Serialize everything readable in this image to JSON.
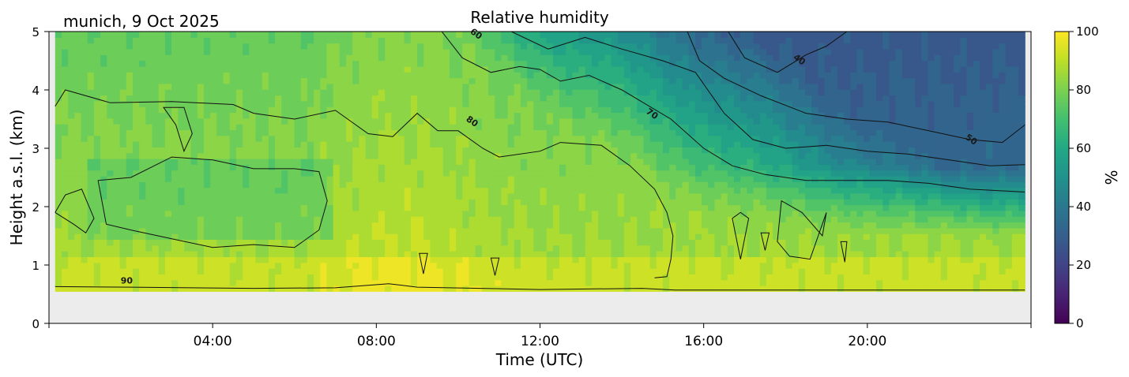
{
  "chart_data": {
    "type": "heatmap",
    "title": "Relative humidity",
    "subtitle": "munich, 9 Oct 2025",
    "xlabel": "Time (UTC)",
    "ylabel": "Height a.s.l. (km)",
    "x_ticks": [
      {
        "hour": 4,
        "label": "04:00"
      },
      {
        "hour": 8,
        "label": "08:00"
      },
      {
        "hour": 12,
        "label": "12:00"
      },
      {
        "hour": 16,
        "label": "16:00"
      },
      {
        "hour": 20,
        "label": "20:00"
      }
    ],
    "xlim_hours": [
      0,
      24
    ],
    "data_xrange_hours": [
      0.15,
      23.85
    ],
    "y_ticks": [
      0,
      1,
      2,
      3,
      4,
      5
    ],
    "ylim": [
      0,
      5
    ],
    "data_ylim": [
      0.55,
      5
    ],
    "colorbar": {
      "label": "%",
      "ticks": [
        0,
        20,
        40,
        60,
        80,
        100
      ],
      "range": [
        0,
        100
      ],
      "colormap": "viridis"
    },
    "no_data_color": "#ececec",
    "contour_levels": [
      40,
      50,
      60,
      70,
      80,
      90
    ],
    "contour_labels": [
      {
        "text": "90",
        "hour": 1.9,
        "km": 0.68
      },
      {
        "text": "80",
        "hour": 10.3,
        "km": 3.42
      },
      {
        "text": "70",
        "hour": 14.7,
        "km": 3.55
      },
      {
        "text": "60",
        "hour": 10.4,
        "km": 4.92
      },
      {
        "text": "50",
        "hour": 22.5,
        "km": 3.11
      },
      {
        "text": "40",
        "hour": 18.3,
        "km": 4.48
      }
    ],
    "contour_lines": {
      "c90": [
        [
          0.15,
          0.63
        ],
        [
          2,
          0.62
        ],
        [
          5,
          0.6
        ],
        [
          7,
          0.61
        ],
        [
          8.3,
          0.68
        ],
        [
          9,
          0.62
        ],
        [
          12,
          0.58
        ],
        [
          14.5,
          0.6
        ],
        [
          15.3,
          0.57
        ],
        [
          23.85,
          0.57
        ]
      ],
      "c80_top": [
        [
          0.15,
          3.72
        ],
        [
          0.4,
          4.0
        ],
        [
          1.5,
          3.78
        ],
        [
          3,
          3.8
        ],
        [
          4.5,
          3.75
        ],
        [
          5,
          3.6
        ],
        [
          6,
          3.5
        ],
        [
          7,
          3.65
        ],
        [
          7.8,
          3.25
        ],
        [
          8.4,
          3.2
        ],
        [
          9,
          3.6
        ],
        [
          9.5,
          3.3
        ],
        [
          10,
          3.3
        ],
        [
          10.6,
          3.0
        ],
        [
          11,
          2.85
        ],
        [
          12,
          2.95
        ],
        [
          12.5,
          3.1
        ],
        [
          13.5,
          3.05
        ],
        [
          14.2,
          2.7
        ],
        [
          14.8,
          2.3
        ],
        [
          15.1,
          1.9
        ],
        [
          15.25,
          1.5
        ],
        [
          15.2,
          1.1
        ],
        [
          15.1,
          0.8
        ],
        [
          14.8,
          0.78
        ]
      ],
      "c80_inner": [
        [
          1.2,
          2.45
        ],
        [
          1.4,
          1.7
        ],
        [
          2,
          1.6
        ],
        [
          3,
          1.45
        ],
        [
          4,
          1.3
        ],
        [
          5,
          1.35
        ],
        [
          6,
          1.3
        ],
        [
          6.6,
          1.6
        ],
        [
          6.8,
          2.1
        ],
        [
          6.6,
          2.6
        ],
        [
          6.0,
          2.65
        ],
        [
          5.0,
          2.65
        ],
        [
          4,
          2.8
        ],
        [
          3,
          2.85
        ],
        [
          2,
          2.5
        ],
        [
          1.2,
          2.45
        ]
      ],
      "c80_inner2": [
        [
          0.15,
          1.9
        ],
        [
          0.6,
          1.7
        ],
        [
          0.9,
          1.55
        ],
        [
          1.1,
          1.8
        ],
        [
          0.8,
          2.3
        ],
        [
          0.4,
          2.2
        ],
        [
          0.15,
          1.9
        ]
      ],
      "c70": [
        [
          9.6,
          5
        ],
        [
          10.1,
          4.55
        ],
        [
          10.8,
          4.3
        ],
        [
          11.5,
          4.4
        ],
        [
          12,
          4.35
        ],
        [
          12.5,
          4.15
        ],
        [
          13.2,
          4.25
        ],
        [
          14,
          4.0
        ],
        [
          15.2,
          3.5
        ],
        [
          16,
          3.0
        ],
        [
          16.7,
          2.7
        ],
        [
          17.5,
          2.55
        ],
        [
          18.5,
          2.45
        ],
        [
          19.5,
          2.45
        ],
        [
          20.5,
          2.45
        ],
        [
          21.5,
          2.4
        ],
        [
          22.5,
          2.3
        ],
        [
          23.85,
          2.25
        ]
      ],
      "c60": [
        [
          11.3,
          5
        ],
        [
          12.2,
          4.7
        ],
        [
          13.1,
          4.9
        ],
        [
          14,
          4.7
        ],
        [
          15,
          4.5
        ],
        [
          15.8,
          4.3
        ],
        [
          16.5,
          3.6
        ],
        [
          17.2,
          3.15
        ],
        [
          18,
          3.0
        ],
        [
          19,
          3.05
        ],
        [
          20,
          2.95
        ],
        [
          21,
          2.9
        ],
        [
          22,
          2.8
        ],
        [
          23,
          2.7
        ],
        [
          23.85,
          2.72
        ]
      ],
      "c50": [
        [
          15.6,
          5
        ],
        [
          15.9,
          4.5
        ],
        [
          16.5,
          4.2
        ],
        [
          17.4,
          3.9
        ],
        [
          18.5,
          3.6
        ],
        [
          19.5,
          3.5
        ],
        [
          20.5,
          3.45
        ],
        [
          21.5,
          3.3
        ],
        [
          22.5,
          3.15
        ],
        [
          23.3,
          3.1
        ],
        [
          23.85,
          3.4
        ]
      ],
      "c40": [
        [
          16.6,
          5
        ],
        [
          17.0,
          4.55
        ],
        [
          17.8,
          4.3
        ],
        [
          18.5,
          4.6
        ],
        [
          19.0,
          4.75
        ],
        [
          19.5,
          5
        ]
      ],
      "islands": [
        [
          [
            2.8,
            3.7
          ],
          [
            3.1,
            3.4
          ],
          [
            3.3,
            2.95
          ],
          [
            3.5,
            3.25
          ],
          [
            3.3,
            3.7
          ],
          [
            2.8,
            3.7
          ]
        ],
        [
          [
            9.05,
            1.2
          ],
          [
            9.15,
            0.85
          ],
          [
            9.25,
            1.2
          ],
          [
            9.05,
            1.2
          ]
        ],
        [
          [
            10.8,
            1.12
          ],
          [
            10.9,
            0.82
          ],
          [
            11.0,
            1.12
          ],
          [
            10.8,
            1.12
          ]
        ],
        [
          [
            16.7,
            1.8
          ],
          [
            16.9,
            1.1
          ],
          [
            17.1,
            1.8
          ],
          [
            16.9,
            1.9
          ],
          [
            16.7,
            1.8
          ]
        ],
        [
          [
            17.4,
            1.55
          ],
          [
            17.5,
            1.25
          ],
          [
            17.6,
            1.55
          ],
          [
            17.4,
            1.55
          ]
        ],
        [
          [
            17.8,
            1.4
          ],
          [
            17.9,
            2.1
          ],
          [
            18.4,
            1.9
          ],
          [
            18.9,
            1.5
          ],
          [
            19.0,
            1.9
          ],
          [
            18.6,
            1.1
          ],
          [
            18.1,
            1.15
          ],
          [
            17.8,
            1.4
          ]
        ],
        [
          [
            19.35,
            1.4
          ],
          [
            19.45,
            1.05
          ],
          [
            19.5,
            1.4
          ],
          [
            19.35,
            1.4
          ]
        ]
      ]
    }
  }
}
